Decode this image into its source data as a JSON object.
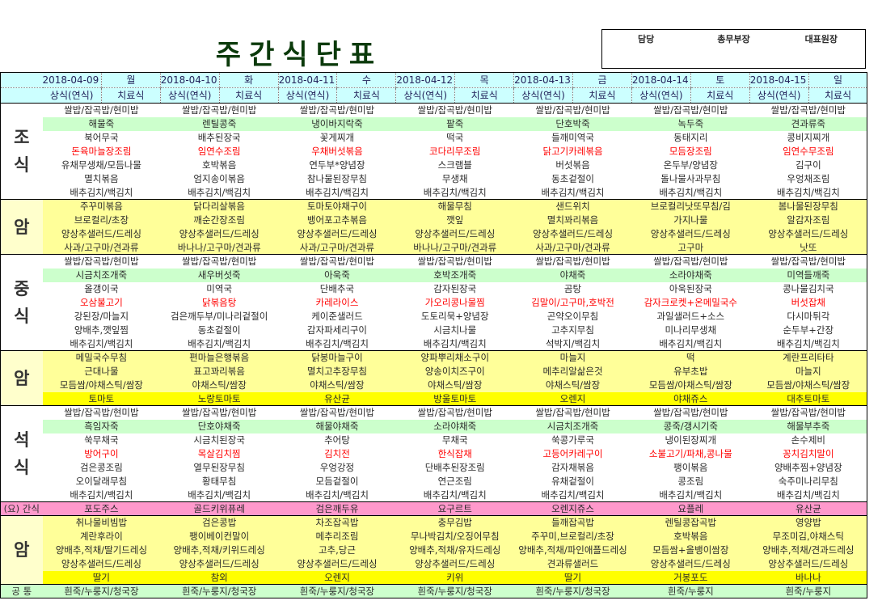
{
  "title": "주간식단표",
  "approval": [
    "담당",
    "총무부장",
    "대표원장"
  ],
  "dates": [
    {
      "date": "2018-04-09",
      "day": "월"
    },
    {
      "date": "2018-04-10",
      "day": "화"
    },
    {
      "date": "2018-04-11",
      "day": "수"
    },
    {
      "date": "2018-04-12",
      "day": "목"
    },
    {
      "date": "2018-04-13",
      "day": "금"
    },
    {
      "date": "2018-04-14",
      "day": "토"
    },
    {
      "date": "2018-04-15",
      "day": "일"
    }
  ],
  "subheaders": {
    "regular": "상식(연식)",
    "therapeutic": "치료식"
  },
  "sections": [
    {
      "label": "조식",
      "label_style": "",
      "rows": [
        {
          "style": "normal",
          "items": [
            "쌀밥/잡곡밥/현미밥",
            "쌀밥/잡곡밥/현미밥",
            "쌀밥/잡곡밥/현미밥",
            "쌀밥/잡곡밥/현미밥",
            "쌀밥/잡곡밥/현미밥",
            "쌀밥/잡곡밥/현미밥",
            "쌀밥/잡곡밥/현미밥"
          ]
        },
        {
          "style": "porridge",
          "items": [
            "해물죽",
            "렌틸콩죽",
            "냉이바지락죽",
            "팥죽",
            "단호박죽",
            "녹두죽",
            "견과류죽"
          ]
        },
        {
          "style": "normal",
          "items": [
            "북어무국",
            "배추된장국",
            "꽃게찌개",
            "떡국",
            "들깨미역국",
            "동태지리",
            "콩비지찌개"
          ]
        },
        {
          "style": "red",
          "items": [
            "돈육마늘장조림",
            "임연수조림",
            "우채버섯볶음",
            "코다리무조림",
            "닭고기카레볶음",
            "모듬장조림",
            "임연수무조림"
          ]
        },
        {
          "style": "normal",
          "items": [
            "유채무생채/모듬나물",
            "호박볶음",
            "연두부*양념장",
            "스크램블",
            "버섯볶음",
            "온두부/양념장",
            "김구이"
          ]
        },
        {
          "style": "normal",
          "items": [
            "멸치볶음",
            "엄지송이볶음",
            "참나물된장무침",
            "무생채",
            "동초겉절이",
            "돌나물사과무침",
            "우엉채조림"
          ]
        },
        {
          "style": "normal",
          "items": [
            "배추김치/백김치",
            "배추김치/백김치",
            "배추김치/백김치",
            "배추김치/백김치",
            "배추김치/백김치",
            "배추김치/백김치",
            "배추김치/백김치"
          ]
        }
      ]
    },
    {
      "label": "암",
      "label_style": "y",
      "rows": [
        {
          "style": "yellow",
          "items": [
            "주꾸미볶음",
            "닭다리살볶음",
            "토마토야채구이",
            "해물무침",
            "샌드위치",
            "브로컬리낫또무침/김",
            "봄나물된장무침"
          ]
        },
        {
          "style": "yellow",
          "items": [
            "브로컬리/초장",
            "깨순간장조림",
            "뱅어포고추볶음",
            "깻잎",
            "멸치꽈리볶음",
            "가지나물",
            "알감자조림"
          ]
        },
        {
          "style": "yellow",
          "items": [
            "양상추샐러드/드레싱",
            "양상추샐러드/드레싱",
            "양상추샐러드/드레싱",
            "양상추샐러드/드레싱",
            "양상추샐러드/드레싱",
            "양상추샐러드/드레싱",
            "양상추샐러드/드레싱"
          ]
        },
        {
          "style": "yellow",
          "items": [
            "사과/고구마/견과류",
            "바나나/고구마/견과류",
            "사과/고구마/견과류",
            "바나나/고구마/견과류",
            "사과/고구마/견과류",
            "고구마",
            "낫또"
          ]
        }
      ]
    },
    {
      "label": "중식",
      "label_style": "",
      "rows": [
        {
          "style": "normal",
          "items": [
            "쌀밥/잡곡밥/현미밥",
            "쌀밥/잡곡밥/현미밥",
            "쌀밥/잡곡밥/현미밥",
            "쌀밥/잡곡밥/현미밥",
            "쌀밥/잡곡밥/현미밥",
            "쌀밥/잡곡밥/현미밥",
            "쌀밥/잡곡밥/현미밥"
          ]
        },
        {
          "style": "porridge",
          "items": [
            "시금치조개죽",
            "새우버섯죽",
            "아욱죽",
            "호박조개죽",
            "야채죽",
            "소라야채죽",
            "미역들깨죽"
          ]
        },
        {
          "style": "normal",
          "items": [
            "올갱이국",
            "미역국",
            "단배추국",
            "감자된장국",
            "곰탕",
            "아욱된장국",
            "콩나물김치국"
          ]
        },
        {
          "style": "red",
          "items": [
            "오삼불고기",
            "닭볶음탕",
            "카레라이스",
            "가오리콩나물찜",
            "김말이/고구마,호박전",
            "감자크로켓+온메밀국수",
            "버섯잡채"
          ]
        },
        {
          "style": "normal",
          "items": [
            "강된장/마늘지",
            "검은깨두부/미나리겉절이",
            "케이준샐러드",
            "도토리묵+양념장",
            "곤약오이무침",
            "과일샐러드+소스",
            "다시마튀각"
          ]
        },
        {
          "style": "normal",
          "items": [
            "양배추,깻잎찜",
            "동초겉절이",
            "감자파세리구이",
            "시금치나물",
            "고추지무침",
            "미나리무생채",
            "순두부+간장"
          ]
        },
        {
          "style": "normal",
          "items": [
            "배추김치/백김치",
            "배추김치/백김치",
            "배추김치/백김치",
            "배추김치/백김치",
            "석박지/백김치",
            "배추김치/백김치",
            "배추김치/백김치"
          ]
        }
      ]
    },
    {
      "label": "암",
      "label_style": "y",
      "rows": [
        {
          "style": "yellow",
          "items": [
            "메밀국수무침",
            "편마늘은행볶음",
            "닭봉마늘구이",
            "양파뿌리채소구이",
            "마늘지",
            "떡",
            "계란프리타타"
          ]
        },
        {
          "style": "yellow",
          "items": [
            "근대나물",
            "표고꽈리볶음",
            "멸치고추장무침",
            "양송이치즈구이",
            "메추리알삶은것",
            "유부초밥",
            "마늘지"
          ]
        },
        {
          "style": "yellow",
          "items": [
            "모듬쌈/야채스틱/쌈장",
            "야채스틱/쌈장",
            "야채스틱/쌈장",
            "야채스틱/쌈장",
            "야채스틱/쌈장",
            "모듬쌈/야채스틱/쌈장",
            "모듬쌈/야채스틱/쌈장"
          ]
        },
        {
          "style": "fruit",
          "items": [
            "토마토",
            "노랑토마토",
            "유산균",
            "방울토마토",
            "오렌지",
            "야채쥬스",
            "대추토마토"
          ]
        }
      ]
    },
    {
      "label": "석식",
      "label_style": "",
      "rows": [
        {
          "style": "normal",
          "items": [
            "쌀밥/잡곡밥/현미밥",
            "쌀밥/잡곡밥/현미밥",
            "쌀밥/잡곡밥/현미밥",
            "쌀밥/잡곡밥/현미밥",
            "쌀밥/잡곡밥/현미밥",
            "쌀밥/잡곡밥/현미밥",
            "쌀밥/잡곡밥/현미밥"
          ]
        },
        {
          "style": "porridge",
          "items": [
            "흑임자죽",
            "단호야채죽",
            "해물야채죽",
            "소라야채죽",
            "시금치조개죽",
            "콩죽/갱시기죽",
            "해물부추죽"
          ]
        },
        {
          "style": "normal",
          "items": [
            "쑥무채국",
            "시금치된장국",
            "추어탕",
            "무채국",
            "쑥콩가루국",
            "냉이된장찌개",
            "손수제비"
          ]
        },
        {
          "style": "red",
          "items": [
            "방어구이",
            "목살김치찜",
            "김치전",
            "한식잡채",
            "고등어카레구이",
            "소불고기/파채,콩나물",
            "꽁치김치말이"
          ]
        },
        {
          "style": "normal",
          "items": [
            "검은콩조림",
            "열무된장무침",
            "우엉강정",
            "단배추된장조림",
            "감자채볶음",
            "팽이볶음",
            "양배추찜+양념장"
          ]
        },
        {
          "style": "normal",
          "items": [
            "오이달래무침",
            "황태무침",
            "모듬겉절이",
            "연근조림",
            "유채겉절이",
            "콩조림",
            "숙주미나리무침"
          ]
        },
        {
          "style": "normal",
          "items": [
            "배추김치/백김치",
            "배추김치/백김치",
            "배추김치/백김치",
            "배추김치/백김치",
            "배추김치/백김치",
            "배추김치/백김치",
            "배추김치/백김치"
          ]
        }
      ]
    },
    {
      "label": "(요) 간식",
      "label_style": "small",
      "rows": [
        {
          "style": "snack",
          "items": [
            "포도주스",
            "골드키위퓨레",
            "검은깨두유",
            "요구르트",
            "오렌지쥬스",
            "요플레",
            "유산균"
          ]
        }
      ]
    },
    {
      "label": "암",
      "label_style": "y",
      "rows": [
        {
          "style": "yellow",
          "items": [
            "취나물비빔밥",
            "검은콩밥",
            "차조잡곡밥",
            "충무김밥",
            "들깨잡곡밥",
            "렌틸콩잡곡밥",
            "영양밥"
          ]
        },
        {
          "style": "yellow",
          "items": [
            "계란후라이",
            "팽이베이컨말이",
            "메추리조림",
            "무나박김치/오징어무침",
            "주꾸미,브로컬리/초장",
            "호박볶음",
            "무조미김,야채스틱"
          ]
        },
        {
          "style": "yellow",
          "items": [
            "양배추,적채/딸기드레싱",
            "양배추,적채/키위드레싱",
            "고추,당근",
            "양배추,적채/유자드레싱",
            "양배추,적채/파인애플드레싱",
            "모듬쌈+올뱅이쌈장",
            "양배추,적채/견과드레싱"
          ]
        },
        {
          "style": "yellow",
          "items": [
            "양상추샐러드/드레싱",
            "양상추샐러드/드레싱",
            "양상추샐러드/드레싱",
            "양상추샐러드/드레싱",
            "견과류샐러드",
            "양상추샐러드/드레싱",
            "양상추샐러드/드레싱"
          ]
        },
        {
          "style": "fruit",
          "items": [
            "딸기",
            "참외",
            "오렌지",
            "키위",
            "딸기",
            "거봉포도",
            "바나나"
          ]
        }
      ]
    },
    {
      "label": "공 통",
      "label_style": "small",
      "rows": [
        {
          "style": "common",
          "items": [
            "흰죽/누룽지/청국장",
            "흰죽/누룽지/청국장",
            "흰죽/누룽지/청국장",
            "흰죽/누룽지/청국장",
            "흰죽/누룽지/청국장",
            "흰죽/누룽지",
            "흰죽/누룽지"
          ]
        }
      ]
    }
  ],
  "colors": {
    "title": "#0b3a0b",
    "header": "#ccffff",
    "porridge": "#ccffcc",
    "cancer": "#ffff99",
    "fruit": "#ffff00",
    "snack": "#ff99cc",
    "highlight_text": "#ff0000"
  }
}
